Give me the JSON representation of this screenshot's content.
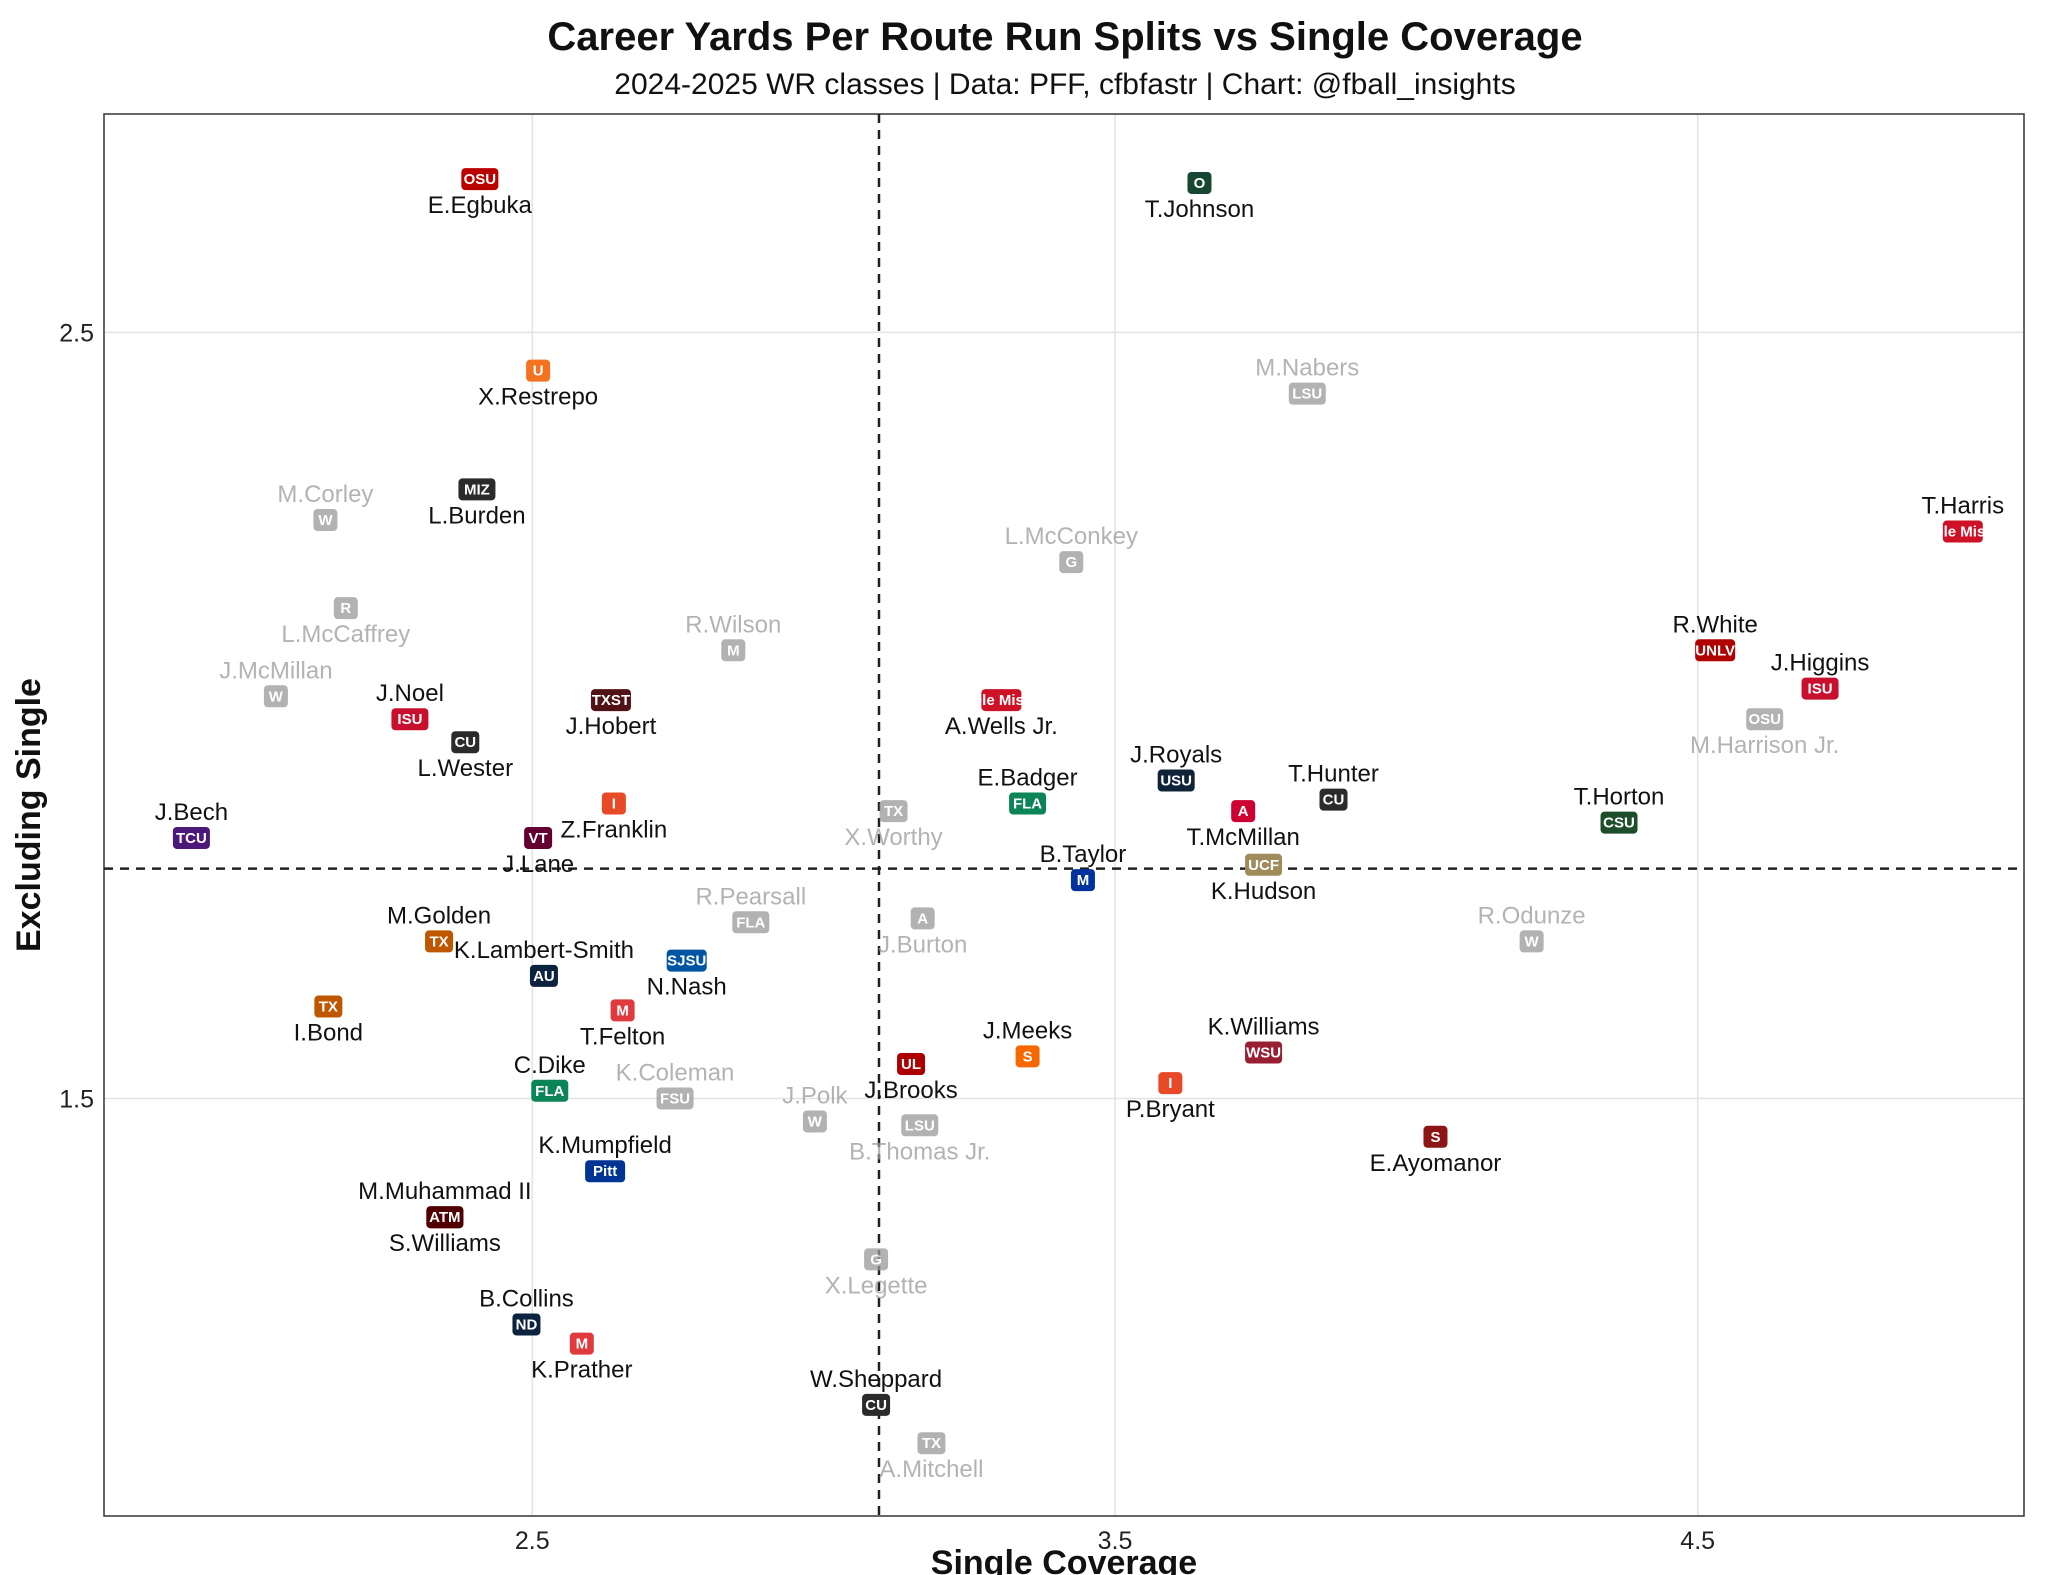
{
  "chart_data": {
    "type": "scatter",
    "title": "Career Yards Per Route Run Splits vs Single Coverage",
    "subtitle": "2024-2025 WR classes | Data: PFF, cfbfastr | Chart: @fball_insights",
    "xlabel": "Single Coverage",
    "ylabel": "Excluding Single",
    "xlim": [
      1.765,
      5.06
    ],
    "ylim": [
      0.955,
      2.785
    ],
    "xticks": [
      2.5,
      3.5,
      4.5
    ],
    "yticks": [
      1.5,
      2.5
    ],
    "xtick_labels": [
      "2.5",
      "3.5",
      "4.5"
    ],
    "ytick_labels": [
      "1.5",
      "2.5"
    ],
    "grid": true,
    "ref_lines": {
      "x": 3.095,
      "y": 1.8
    },
    "points": [
      {
        "name": "E.Egbuka",
        "x": 2.41,
        "y": 2.7,
        "gray": false,
        "color": "#bb0000",
        "logo": "OSU",
        "lp": "below"
      },
      {
        "name": "T.Johnson",
        "x": 3.645,
        "y": 2.695,
        "gray": false,
        "color": "#154733",
        "logo": "O",
        "lp": "below"
      },
      {
        "name": "X.Restrepo",
        "x": 2.51,
        "y": 2.45,
        "gray": false,
        "color": "#f47321",
        "logo": "U",
        "lp": "below"
      },
      {
        "name": "M.Nabers",
        "x": 3.83,
        "y": 2.42,
        "gray": true,
        "color": "#999999",
        "logo": "LSU",
        "lp": "above"
      },
      {
        "name": "L.Burden",
        "x": 2.405,
        "y": 2.295,
        "gray": false,
        "color": "#2b2b2b",
        "logo": "MIZ",
        "lp": "below"
      },
      {
        "name": "M.Corley",
        "x": 2.145,
        "y": 2.255,
        "gray": true,
        "color": "#999999",
        "logo": "W",
        "lp": "above"
      },
      {
        "name": "T.Harris",
        "x": 4.955,
        "y": 2.24,
        "gray": false,
        "color": "#ce1126",
        "logo": "Ole Miss",
        "lp": "above"
      },
      {
        "name": "L.McConkey",
        "x": 3.425,
        "y": 2.2,
        "gray": true,
        "color": "#999999",
        "logo": "G",
        "lp": "above"
      },
      {
        "name": "L.McCaffrey",
        "x": 2.18,
        "y": 2.14,
        "gray": true,
        "color": "#999999",
        "logo": "R",
        "lp": "below"
      },
      {
        "name": "R.Wilson",
        "x": 2.845,
        "y": 2.085,
        "gray": true,
        "color": "#999999",
        "logo": "M",
        "lp": "above"
      },
      {
        "name": "R.White",
        "x": 4.53,
        "y": 2.085,
        "gray": false,
        "color": "#b10202",
        "logo": "UNLV",
        "lp": "above"
      },
      {
        "name": "J.Higgins",
        "x": 4.71,
        "y": 2.035,
        "gray": false,
        "color": "#c8102e",
        "logo": "ISU",
        "lp": "above"
      },
      {
        "name": "J.McMillan",
        "x": 2.06,
        "y": 2.025,
        "gray": true,
        "color": "#999999",
        "logo": "W",
        "lp": "above"
      },
      {
        "name": "J.Hobert",
        "x": 2.635,
        "y": 2.02,
        "gray": false,
        "color": "#501214",
        "logo": "TXST",
        "lp": "below"
      },
      {
        "name": "A.Wells Jr.",
        "x": 3.305,
        "y": 2.02,
        "gray": false,
        "color": "#ce1126",
        "logo": "Ole Miss",
        "lp": "below"
      },
      {
        "name": "J.Noel",
        "x": 2.29,
        "y": 1.995,
        "gray": false,
        "color": "#c8102e",
        "logo": "ISU",
        "lp": "above"
      },
      {
        "name": "M.Harrison Jr.",
        "x": 4.615,
        "y": 1.995,
        "gray": true,
        "color": "#999999",
        "logo": "OSU",
        "lp": "below"
      },
      {
        "name": "L.Wester",
        "x": 2.385,
        "y": 1.965,
        "gray": false,
        "color": "#2b2b2b",
        "logo": "CU",
        "lp": "below"
      },
      {
        "name": "J.Royals",
        "x": 3.605,
        "y": 1.915,
        "gray": false,
        "color": "#0f2439",
        "logo": "USU",
        "lp": "above"
      },
      {
        "name": "E.Badger",
        "x": 3.35,
        "y": 1.885,
        "gray": false,
        "color": "#0b8457",
        "logo": "FLA",
        "lp": "above"
      },
      {
        "name": "T.Hunter",
        "x": 3.875,
        "y": 1.89,
        "gray": false,
        "color": "#2b2b2b",
        "logo": "CU",
        "lp": "above"
      },
      {
        "name": "Z.Franklin",
        "x": 2.64,
        "y": 1.885,
        "gray": false,
        "color": "#e84a27",
        "logo": "I",
        "lp": "below"
      },
      {
        "name": "X.Worthy",
        "x": 3.12,
        "y": 1.875,
        "gray": true,
        "color": "#999999",
        "logo": "TX",
        "lp": "below"
      },
      {
        "name": "T.McMillan",
        "x": 3.72,
        "y": 1.875,
        "gray": false,
        "color": "#cc0033",
        "logo": "A",
        "lp": "below"
      },
      {
        "name": "J.Bech",
        "x": 1.915,
        "y": 1.84,
        "gray": false,
        "color": "#4d1979",
        "logo": "TCU",
        "lp": "above"
      },
      {
        "name": "T.Horton",
        "x": 4.365,
        "y": 1.86,
        "gray": false,
        "color": "#1e4d2b",
        "logo": "CSU",
        "lp": "above"
      },
      {
        "name": "J.Lane",
        "x": 2.51,
        "y": 1.84,
        "gray": false,
        "color": "#630031",
        "logo": "VT",
        "lp": "below"
      },
      {
        "name": "B.Taylor",
        "x": 3.445,
        "y": 1.785,
        "gray": false,
        "color": "#0033a0",
        "logo": "M",
        "lp": "above"
      },
      {
        "name": "K.Hudson",
        "x": 3.755,
        "y": 1.805,
        "gray": false,
        "color": "#a08c5b",
        "logo": "UCF",
        "lp": "below"
      },
      {
        "name": "R.Pearsall",
        "x": 2.875,
        "y": 1.73,
        "gray": true,
        "color": "#999999",
        "logo": "FLA",
        "lp": "above"
      },
      {
        "name": "J.Burton",
        "x": 3.17,
        "y": 1.735,
        "gray": true,
        "color": "#999999",
        "logo": "A",
        "lp": "below"
      },
      {
        "name": "R.Odunze",
        "x": 4.215,
        "y": 1.705,
        "gray": true,
        "color": "#999999",
        "logo": "W",
        "lp": "above"
      },
      {
        "name": "M.Golden",
        "x": 2.34,
        "y": 1.705,
        "gray": false,
        "color": "#bf5700",
        "logo": "TX",
        "lp": "above"
      },
      {
        "name": "K.Lambert-Smith",
        "x": 2.52,
        "y": 1.66,
        "gray": false,
        "color": "#0c2340",
        "logo": "AU",
        "lp": "above"
      },
      {
        "name": "N.Nash",
        "x": 2.765,
        "y": 1.68,
        "gray": false,
        "color": "#0055a2",
        "logo": "SJSU",
        "lp": "below"
      },
      {
        "name": "I.Bond",
        "x": 2.15,
        "y": 1.62,
        "gray": false,
        "color": "#bf5700",
        "logo": "TX",
        "lp": "below"
      },
      {
        "name": "T.Felton",
        "x": 2.655,
        "y": 1.615,
        "gray": false,
        "color": "#e03a3e",
        "logo": "M",
        "lp": "below"
      },
      {
        "name": "J.Meeks",
        "x": 3.35,
        "y": 1.555,
        "gray": false,
        "color": "#f76900",
        "logo": "S",
        "lp": "above"
      },
      {
        "name": "K.Williams",
        "x": 3.755,
        "y": 1.56,
        "gray": false,
        "color": "#981e32",
        "logo": "WSU",
        "lp": "above"
      },
      {
        "name": "J.Brooks",
        "x": 3.15,
        "y": 1.545,
        "gray": false,
        "color": "#ad0000",
        "logo": "UL",
        "lp": "below"
      },
      {
        "name": "P.Bryant",
        "x": 3.595,
        "y": 1.52,
        "gray": false,
        "color": "#e84a27",
        "logo": "I",
        "lp": "below"
      },
      {
        "name": "C.Dike",
        "x": 2.53,
        "y": 1.51,
        "gray": false,
        "color": "#0b8457",
        "logo": "FLA",
        "lp": "above"
      },
      {
        "name": "K.Coleman",
        "x": 2.745,
        "y": 1.5,
        "gray": true,
        "color": "#999999",
        "logo": "FSU",
        "lp": "above"
      },
      {
        "name": "J.Polk",
        "x": 2.985,
        "y": 1.47,
        "gray": true,
        "color": "#999999",
        "logo": "W",
        "lp": "above"
      },
      {
        "name": "B.Thomas Jr.",
        "x": 3.165,
        "y": 1.465,
        "gray": true,
        "color": "#999999",
        "logo": "LSU",
        "lp": "below"
      },
      {
        "name": "E.Ayomanor",
        "x": 4.05,
        "y": 1.45,
        "gray": false,
        "color": "#8c1515",
        "logo": "S",
        "lp": "below"
      },
      {
        "name": "K.Mumpfield",
        "x": 2.625,
        "y": 1.405,
        "gray": false,
        "color": "#003594",
        "logo": "Pitt",
        "lp": "above"
      },
      {
        "name": "M.Muhammad II",
        "x": 2.35,
        "y": 1.345,
        "gray": false,
        "color": "#500000",
        "logo": "ATM",
        "lp": "above"
      },
      {
        "name": "S.Williams",
        "x": 2.35,
        "y": 1.345,
        "gray": false,
        "color": "#500000",
        "logo": "ATM",
        "lp": "below"
      },
      {
        "name": "X.Legette",
        "x": 3.09,
        "y": 1.29,
        "gray": true,
        "color": "#999999",
        "logo": "G",
        "lp": "below"
      },
      {
        "name": "B.Collins",
        "x": 2.49,
        "y": 1.205,
        "gray": false,
        "color": "#0c2340",
        "logo": "ND",
        "lp": "above"
      },
      {
        "name": "K.Prather",
        "x": 2.585,
        "y": 1.18,
        "gray": false,
        "color": "#e03a3e",
        "logo": "M",
        "lp": "below"
      },
      {
        "name": "W.Sheppard",
        "x": 3.09,
        "y": 1.1,
        "gray": false,
        "color": "#2b2b2b",
        "logo": "CU",
        "lp": "above"
      },
      {
        "name": "A.Mitchell",
        "x": 3.185,
        "y": 1.05,
        "gray": true,
        "color": "#999999",
        "logo": "TX",
        "lp": "below"
      }
    ]
  }
}
